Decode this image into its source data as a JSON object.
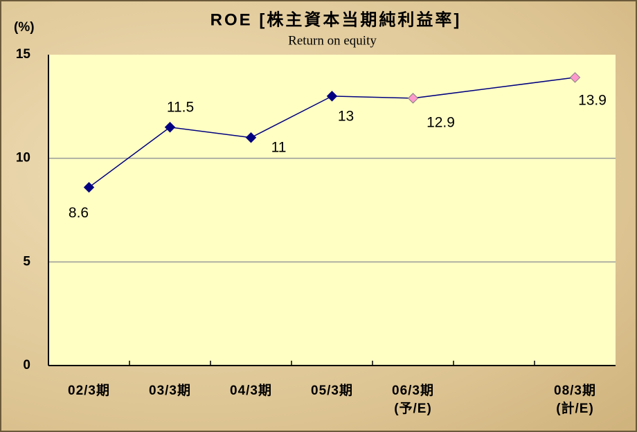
{
  "chart_data": {
    "type": "line",
    "title": "ROE [株主資本当期純利益率]",
    "subtitle": "Return on equity",
    "y_label": "(%)",
    "categories": [
      "02/3期",
      "03/3期",
      "04/3期",
      "05/3期",
      "06/3期\n(予/E)",
      null,
      "08/3期\n(計/E)"
    ],
    "series": [
      {
        "color": "#000080",
        "values": [
          8.6,
          11.5,
          11.0,
          13.0,
          12.9,
          null,
          13.9
        ],
        "marker_colors": [
          "#000080",
          "#000080",
          "#000080",
          "#000080",
          "#ff99cc",
          null,
          "#ff99cc"
        ]
      }
    ],
    "ylim": [
      0,
      15
    ],
    "yticks": [
      0,
      5,
      10,
      15
    ],
    "grid": true
  }
}
